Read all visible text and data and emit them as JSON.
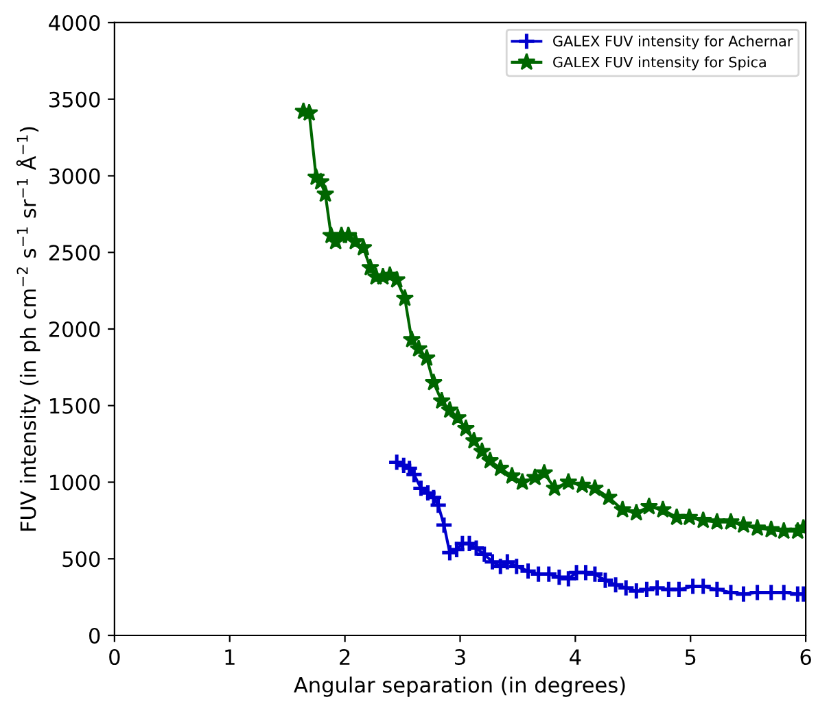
{
  "chart_data": {
    "type": "line",
    "xlabel": "Angular separation (in degrees)",
    "ylabel": "FUV intensity (in ph cm$^{−2}$ s$^{−1}$ sr$^{−1}$ Å$^{−1}$)",
    "xlim": [
      0,
      6
    ],
    "ylim": [
      0,
      4000
    ],
    "xticks": [
      0,
      1,
      2,
      3,
      4,
      5,
      6
    ],
    "yticks": [
      0,
      500,
      1000,
      1500,
      2000,
      2500,
      3000,
      3500,
      4000
    ],
    "legend": "top right",
    "line_style": "solid",
    "grid": false,
    "series": [
      {
        "name": "GALEX FUV intensity for Achernar",
        "color": "#0000cc",
        "marker": "cross",
        "x": [
          2.45,
          2.51,
          2.56,
          2.6,
          2.66,
          2.72,
          2.77,
          2.81,
          2.86,
          2.91,
          2.97,
          3.02,
          3.08,
          3.14,
          3.21,
          3.28,
          3.35,
          3.41,
          3.49,
          3.59,
          3.68,
          3.77,
          3.86,
          3.94,
          4.01,
          4.09,
          4.17,
          4.26,
          4.35,
          4.44,
          4.53,
          4.62,
          4.71,
          4.81,
          4.9,
          5.02,
          5.11,
          5.23,
          5.35,
          5.46,
          5.58,
          5.7,
          5.81,
          5.93,
          5.98
        ],
        "values": [
          1130,
          1110,
          1090,
          1050,
          960,
          930,
          900,
          850,
          720,
          540,
          560,
          600,
          600,
          570,
          530,
          480,
          450,
          480,
          450,
          420,
          400,
          400,
          380,
          370,
          410,
          410,
          400,
          360,
          330,
          310,
          290,
          300,
          310,
          300,
          300,
          320,
          320,
          300,
          280,
          270,
          280,
          280,
          280,
          270,
          270
        ]
      },
      {
        "name": "GALEX FUV intensity for Spica",
        "color": "#006600",
        "marker": "star",
        "x": [
          1.64,
          1.69,
          1.75,
          1.79,
          1.83,
          1.88,
          1.92,
          1.97,
          2.03,
          2.09,
          2.16,
          2.22,
          2.27,
          2.33,
          2.39,
          2.45,
          2.52,
          2.58,
          2.64,
          2.71,
          2.77,
          2.84,
          2.91,
          2.98,
          3.05,
          3.12,
          3.19,
          3.26,
          3.35,
          3.45,
          3.54,
          3.65,
          3.73,
          3.82,
          3.94,
          4.06,
          4.17,
          4.29,
          4.41,
          4.53,
          4.64,
          4.76,
          4.88,
          4.99,
          5.11,
          5.23,
          5.35,
          5.46,
          5.58,
          5.7,
          5.81,
          5.93,
          5.98
        ],
        "values": [
          3420,
          3410,
          2990,
          2960,
          2880,
          2610,
          2570,
          2610,
          2610,
          2570,
          2530,
          2400,
          2340,
          2340,
          2350,
          2320,
          2200,
          1930,
          1870,
          1810,
          1650,
          1530,
          1470,
          1420,
          1350,
          1270,
          1200,
          1140,
          1090,
          1040,
          1000,
          1030,
          1060,
          960,
          1000,
          980,
          960,
          900,
          820,
          800,
          840,
          820,
          770,
          770,
          750,
          740,
          740,
          720,
          700,
          690,
          680,
          680,
          700
        ]
      }
    ]
  }
}
